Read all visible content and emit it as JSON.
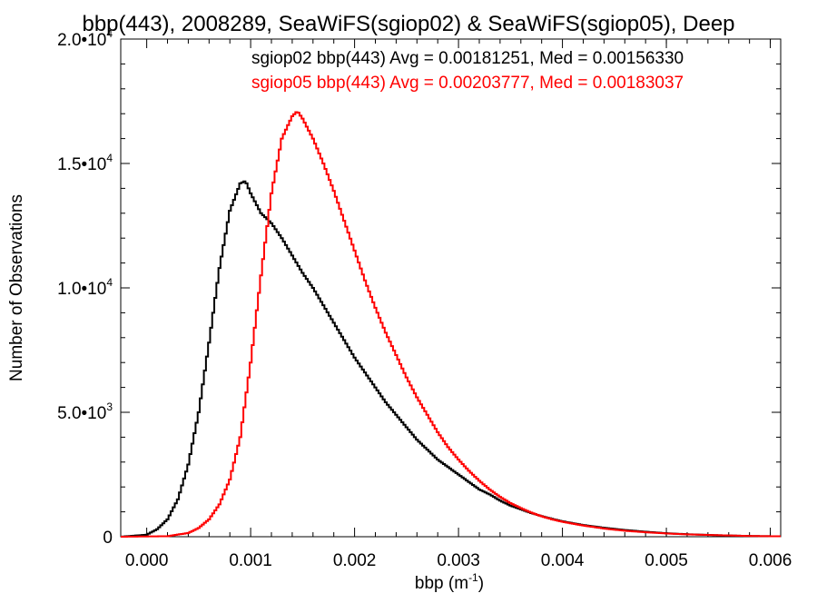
{
  "chart_data": {
    "type": "line",
    "step": true,
    "title": "bbp(443), 2008289, SeaWiFS(sgiop02) & SeaWiFS(sgiop05), Deep",
    "xlabel": "bbp (m",
    "xlabel_sup": "-1",
    "xlabel_end": ")",
    "ylabel": "Number of Observations",
    "xlim": [
      -0.00025,
      0.0061
    ],
    "ylim": [
      0,
      20000
    ],
    "x_ticks": [
      {
        "value": 0.0,
        "label": "0.000"
      },
      {
        "value": 0.001,
        "label": "0.001"
      },
      {
        "value": 0.002,
        "label": "0.002"
      },
      {
        "value": 0.003,
        "label": "0.003"
      },
      {
        "value": 0.004,
        "label": "0.004"
      },
      {
        "value": 0.005,
        "label": "0.005"
      },
      {
        "value": 0.006,
        "label": "0.006"
      }
    ],
    "y_ticks": [
      {
        "value": 0,
        "label": "0",
        "exp": ""
      },
      {
        "value": 5000,
        "label": "5.0•10",
        "exp": "3"
      },
      {
        "value": 10000,
        "label": "1.0•10",
        "exp": "4"
      },
      {
        "value": 15000,
        "label": "1.5•10",
        "exp": "4"
      },
      {
        "value": 20000,
        "label": "2.0•10",
        "exp": "4"
      }
    ],
    "grid": false,
    "series": [
      {
        "name": "sgiop02 bbp(443) Avg = 0.00181251, Med = 0.00156330",
        "color": "#000000",
        "x": [
          -0.00025,
          0.0,
          0.0001,
          0.0002,
          0.0003,
          0.0004,
          0.0005,
          0.0006,
          0.0007,
          0.0008,
          0.0009,
          0.00095,
          0.001,
          0.0011,
          0.0012,
          0.0013,
          0.0014,
          0.0015,
          0.0016,
          0.0017,
          0.0018,
          0.0019,
          0.002,
          0.0021,
          0.0022,
          0.0023,
          0.0024,
          0.0025,
          0.0026,
          0.0027,
          0.0028,
          0.0029,
          0.003,
          0.0031,
          0.0032,
          0.0033,
          0.0034,
          0.0035,
          0.0036,
          0.0037,
          0.0038,
          0.0039,
          0.004,
          0.0042,
          0.0044,
          0.0046,
          0.0048,
          0.005,
          0.0052,
          0.0055,
          0.0058,
          0.006
        ],
        "y": [
          0,
          80,
          300,
          700,
          1500,
          2900,
          5000,
          7800,
          10800,
          13100,
          14200,
          14300,
          13800,
          13000,
          12600,
          12000,
          11300,
          10600,
          10000,
          9300,
          8600,
          7900,
          7200,
          6600,
          6000,
          5400,
          4900,
          4400,
          3900,
          3500,
          3100,
          2800,
          2500,
          2200,
          1900,
          1700,
          1450,
          1250,
          1100,
          950,
          830,
          720,
          620,
          470,
          360,
          270,
          200,
          140,
          100,
          60,
          30,
          20
        ]
      },
      {
        "name": "sgiop05 bbp(443) Avg = 0.00203777, Med = 0.00183037",
        "color": "#ff0000",
        "x": [
          -0.00025,
          0.0002,
          0.0004,
          0.0005,
          0.0006,
          0.0007,
          0.0008,
          0.0009,
          0.001,
          0.0011,
          0.0012,
          0.0013,
          0.0014,
          0.00145,
          0.0015,
          0.0016,
          0.0017,
          0.0018,
          0.0019,
          0.002,
          0.0021,
          0.0022,
          0.0023,
          0.0024,
          0.0025,
          0.0026,
          0.0027,
          0.0028,
          0.0029,
          0.003,
          0.0031,
          0.0032,
          0.0033,
          0.0034,
          0.0035,
          0.0036,
          0.0037,
          0.0038,
          0.0039,
          0.004,
          0.0042,
          0.0044,
          0.0046,
          0.0048,
          0.005,
          0.0052,
          0.0055,
          0.0058,
          0.006
        ],
        "y": [
          0,
          20,
          150,
          350,
          700,
          1300,
          2300,
          4000,
          7000,
          10500,
          13800,
          16000,
          16900,
          17100,
          16800,
          16000,
          15000,
          13900,
          12700,
          11500,
          10300,
          9200,
          8200,
          7300,
          6400,
          5600,
          4900,
          4200,
          3600,
          3100,
          2650,
          2250,
          1900,
          1600,
          1350,
          1150,
          970,
          820,
          700,
          600,
          450,
          330,
          240,
          180,
          130,
          95,
          60,
          30,
          20
        ]
      }
    ]
  }
}
